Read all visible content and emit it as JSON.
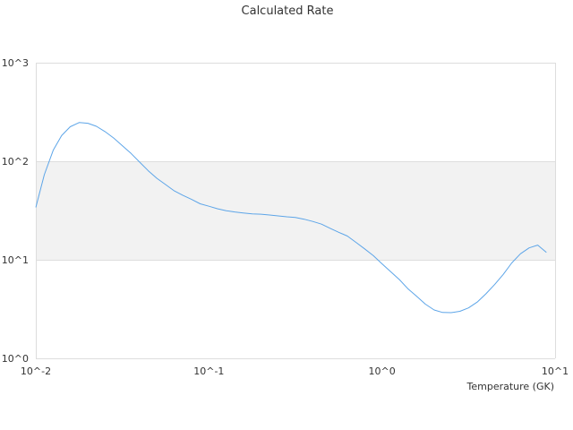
{
  "chart_data": {
    "type": "line",
    "title": "Calculated Rate",
    "xlabel": "Temperature (GK)",
    "ylabel": "",
    "x_scale": "log",
    "y_scale": "log",
    "xlim": [
      0.01,
      10
    ],
    "ylim": [
      1,
      1000
    ],
    "x_ticks": [
      "10^-2",
      "10^-1",
      "10^0",
      "10^1"
    ],
    "y_ticks": [
      "10^0",
      "10^1",
      "10^2",
      "10^3"
    ],
    "grid": true,
    "legend": "none",
    "band": {
      "y_from": 10,
      "y_to": 100,
      "color": "#f2f2f2"
    },
    "line_color": "#5da5e8",
    "series": [
      {
        "x": [
          0.01,
          0.0112,
          0.0126,
          0.0141,
          0.0158,
          0.0178,
          0.02,
          0.0224,
          0.0251,
          0.0282,
          0.0316,
          0.0355,
          0.0398,
          0.0447,
          0.0501,
          0.0562,
          0.0631,
          0.0708,
          0.0794,
          0.0891,
          0.1,
          0.112,
          0.126,
          0.141,
          0.158,
          0.178,
          0.2,
          0.224,
          0.251,
          0.282,
          0.316,
          0.355,
          0.398,
          0.447,
          0.501,
          0.562,
          0.631,
          0.708,
          0.794,
          0.891,
          1.0,
          1.12,
          1.26,
          1.41,
          1.58,
          1.78,
          2.0,
          2.24,
          2.51,
          2.82,
          3.16,
          3.55,
          3.98,
          4.47,
          5.01,
          5.62,
          6.31,
          7.08,
          7.94,
          8.91
        ],
        "values": [
          34,
          73,
          129,
          182,
          224,
          247,
          243,
          226,
          200,
          172,
          144,
          120,
          98,
          80,
          67,
          58,
          50,
          45,
          41,
          37,
          35,
          33,
          31.5,
          30.6,
          29.9,
          29.2,
          29,
          28.5,
          27.9,
          27.3,
          26.9,
          25.8,
          24.5,
          23,
          20.9,
          19,
          17.4,
          15,
          12.9,
          11,
          9.1,
          7.6,
          6.3,
          5.1,
          4.28,
          3.55,
          3.1,
          2.92,
          2.91,
          3.0,
          3.25,
          3.72,
          4.5,
          5.6,
          7.1,
          9.3,
          11.5,
          13.2,
          14.1,
          11.9
        ]
      }
    ]
  }
}
